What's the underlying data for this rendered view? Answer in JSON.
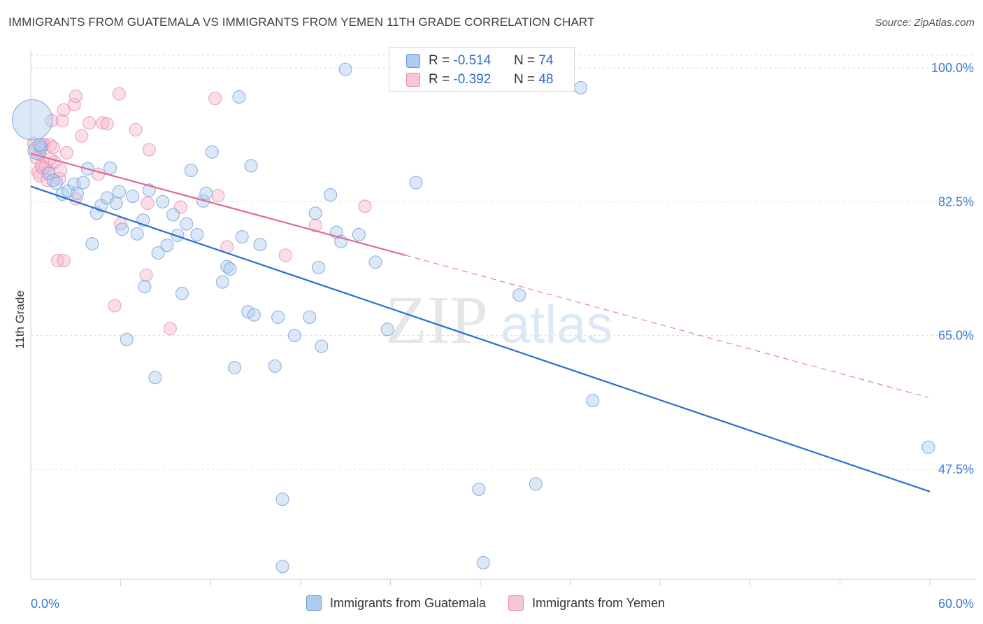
{
  "title": "IMMIGRANTS FROM GUATEMALA VS IMMIGRANTS FROM YEMEN 11TH GRADE CORRELATION CHART",
  "source": "Source: ZipAtlas.com",
  "watermark": {
    "zip": "ZIP",
    "atlas": "atlas"
  },
  "legend": {
    "rows": [
      {
        "r_label": "R =",
        "r_value": "-0.514",
        "n_label": "N =",
        "n_value": "74"
      },
      {
        "r_label": "R =",
        "r_value": "-0.392",
        "n_label": "N =",
        "n_value": "48"
      }
    ]
  },
  "colors": {
    "guatemala_fill": "#aecbf0",
    "guatemala_stroke": "#6d9ad6",
    "guatemala_line": "#2d6fd0",
    "yemen_fill": "#f6b8cc",
    "yemen_stroke": "#e58aa8",
    "yemen_line": "#e06b93",
    "tick_label": "#3b7ad0",
    "grid": "#d9d9d9"
  },
  "chart_data": {
    "type": "scatter",
    "title": "IMMIGRANTS FROM GUATEMALA VS IMMIGRANTS FROM YEMEN 11TH GRADE CORRELATION CHART",
    "xlabel": "",
    "ylabel": "11th Grade",
    "xlim": [
      0,
      60
    ],
    "ylim": [
      30,
      101.5
    ],
    "x_tick_labels": [
      "0.0%",
      "60.0%"
    ],
    "y_ticks": [
      47.5,
      65.0,
      82.5,
      100.0
    ],
    "y_tick_labels": [
      "47.5%",
      "65.0%",
      "82.5%",
      "100.0%"
    ],
    "grid": true,
    "legend_position": "top-center",
    "series": [
      {
        "name": "Immigrants from Guatemala",
        "R": -0.514,
        "N": 74,
        "trend": {
          "x": [
            0,
            60
          ],
          "y": [
            84.5,
            44.6
          ],
          "style": "solid"
        },
        "points": [
          {
            "x": 0.1,
            "y": 93.2,
            "size": 3.2
          },
          {
            "x": 0.4,
            "y": 89.2,
            "size": 1.4
          },
          {
            "x": 0.7,
            "y": 89.6,
            "size": 1
          },
          {
            "x": 1.2,
            "y": 86.2,
            "size": 1
          },
          {
            "x": 1.5,
            "y": 85.3,
            "size": 1
          },
          {
            "x": 1.7,
            "y": 84.9,
            "size": 1
          },
          {
            "x": 2.1,
            "y": 83.5,
            "size": 1
          },
          {
            "x": 2.5,
            "y": 83.9,
            "size": 1
          },
          {
            "x": 2.9,
            "y": 84.8,
            "size": 1
          },
          {
            "x": 3.1,
            "y": 83.6,
            "size": 1
          },
          {
            "x": 3.5,
            "y": 85.0,
            "size": 1
          },
          {
            "x": 3.8,
            "y": 86.8,
            "size": 1
          },
          {
            "x": 4.1,
            "y": 77.0,
            "size": 1
          },
          {
            "x": 4.4,
            "y": 81.0,
            "size": 1
          },
          {
            "x": 4.7,
            "y": 82.0,
            "size": 1
          },
          {
            "x": 5.1,
            "y": 83.0,
            "size": 1
          },
          {
            "x": 5.3,
            "y": 86.9,
            "size": 1
          },
          {
            "x": 5.7,
            "y": 82.3,
            "size": 1
          },
          {
            "x": 5.9,
            "y": 83.8,
            "size": 1
          },
          {
            "x": 6.1,
            "y": 78.9,
            "size": 1
          },
          {
            "x": 6.4,
            "y": 64.5,
            "size": 1
          },
          {
            "x": 6.8,
            "y": 83.2,
            "size": 1
          },
          {
            "x": 7.1,
            "y": 78.3,
            "size": 1
          },
          {
            "x": 7.5,
            "y": 80.1,
            "size": 1
          },
          {
            "x": 7.6,
            "y": 71.4,
            "size": 1
          },
          {
            "x": 7.9,
            "y": 84.0,
            "size": 1
          },
          {
            "x": 8.3,
            "y": 59.5,
            "size": 1
          },
          {
            "x": 8.5,
            "y": 75.8,
            "size": 1
          },
          {
            "x": 8.8,
            "y": 82.5,
            "size": 1
          },
          {
            "x": 9.1,
            "y": 76.8,
            "size": 1
          },
          {
            "x": 9.5,
            "y": 80.8,
            "size": 1
          },
          {
            "x": 9.8,
            "y": 78.1,
            "size": 1
          },
          {
            "x": 10.1,
            "y": 70.5,
            "size": 1
          },
          {
            "x": 10.4,
            "y": 79.6,
            "size": 1
          },
          {
            "x": 10.7,
            "y": 86.6,
            "size": 1
          },
          {
            "x": 11.1,
            "y": 78.2,
            "size": 1
          },
          {
            "x": 11.5,
            "y": 82.6,
            "size": 1
          },
          {
            "x": 11.7,
            "y": 83.6,
            "size": 1
          },
          {
            "x": 12.1,
            "y": 89.0,
            "size": 1
          },
          {
            "x": 12.8,
            "y": 72.0,
            "size": 1
          },
          {
            "x": 13.1,
            "y": 74.0,
            "size": 1
          },
          {
            "x": 13.3,
            "y": 73.7,
            "size": 1
          },
          {
            "x": 13.6,
            "y": 60.8,
            "size": 1
          },
          {
            "x": 13.9,
            "y": 96.2,
            "size": 1
          },
          {
            "x": 14.1,
            "y": 77.9,
            "size": 1
          },
          {
            "x": 14.5,
            "y": 68.1,
            "size": 1
          },
          {
            "x": 14.7,
            "y": 87.2,
            "size": 1
          },
          {
            "x": 14.9,
            "y": 67.7,
            "size": 1
          },
          {
            "x": 15.3,
            "y": 76.9,
            "size": 1
          },
          {
            "x": 16.3,
            "y": 61.0,
            "size": 1
          },
          {
            "x": 16.5,
            "y": 67.4,
            "size": 1
          },
          {
            "x": 16.8,
            "y": 43.6,
            "size": 1
          },
          {
            "x": 16.8,
            "y": 34.8,
            "size": 1
          },
          {
            "x": 17.6,
            "y": 65.0,
            "size": 1
          },
          {
            "x": 18.6,
            "y": 67.4,
            "size": 1
          },
          {
            "x": 19.0,
            "y": 81.0,
            "size": 1
          },
          {
            "x": 19.2,
            "y": 73.9,
            "size": 1
          },
          {
            "x": 19.4,
            "y": 63.6,
            "size": 1
          },
          {
            "x": 20.0,
            "y": 83.4,
            "size": 1
          },
          {
            "x": 20.4,
            "y": 78.5,
            "size": 1
          },
          {
            "x": 20.7,
            "y": 77.3,
            "size": 1
          },
          {
            "x": 21.0,
            "y": 99.8,
            "size": 1
          },
          {
            "x": 21.9,
            "y": 78.2,
            "size": 1
          },
          {
            "x": 23.0,
            "y": 74.6,
            "size": 1
          },
          {
            "x": 23.8,
            "y": 65.8,
            "size": 1
          },
          {
            "x": 25.7,
            "y": 85.0,
            "size": 1
          },
          {
            "x": 29.9,
            "y": 44.9,
            "size": 1
          },
          {
            "x": 30.2,
            "y": 35.3,
            "size": 1
          },
          {
            "x": 32.6,
            "y": 70.3,
            "size": 1
          },
          {
            "x": 33.7,
            "y": 45.6,
            "size": 1
          },
          {
            "x": 36.7,
            "y": 97.4,
            "size": 1
          },
          {
            "x": 37.5,
            "y": 56.5,
            "size": 1
          },
          {
            "x": 59.9,
            "y": 50.4,
            "size": 1
          },
          {
            "x": 0.6,
            "y": 89.9,
            "size": 1
          }
        ]
      },
      {
        "name": "Immigrants from Yemen",
        "R": -0.392,
        "N": 48,
        "trend": {
          "x": [
            0,
            25
          ],
          "y": [
            88.8,
            75.5
          ],
          "style": "solid",
          "extension": {
            "x": [
              25,
              59.9
            ],
            "y": [
              75.5,
              56.9
            ],
            "style": "dashed"
          }
        },
        "points": [
          {
            "x": 0.2,
            "y": 90.1,
            "size": 1
          },
          {
            "x": 0.3,
            "y": 89.2,
            "size": 1
          },
          {
            "x": 0.4,
            "y": 88.2,
            "size": 1
          },
          {
            "x": 0.5,
            "y": 86.4,
            "size": 1
          },
          {
            "x": 0.6,
            "y": 85.9,
            "size": 1
          },
          {
            "x": 0.7,
            "y": 87.2,
            "size": 1
          },
          {
            "x": 0.8,
            "y": 89.9,
            "size": 1
          },
          {
            "x": 0.9,
            "y": 90.0,
            "size": 1
          },
          {
            "x": 1.0,
            "y": 87.0,
            "size": 1
          },
          {
            "x": 1.1,
            "y": 85.3,
            "size": 1
          },
          {
            "x": 1.2,
            "y": 86.5,
            "size": 1
          },
          {
            "x": 1.3,
            "y": 89.9,
            "size": 1
          },
          {
            "x": 1.4,
            "y": 93.1,
            "size": 1
          },
          {
            "x": 1.5,
            "y": 89.6,
            "size": 1
          },
          {
            "x": 1.6,
            "y": 87.7,
            "size": 1
          },
          {
            "x": 1.8,
            "y": 74.8,
            "size": 1
          },
          {
            "x": 1.9,
            "y": 85.5,
            "size": 1
          },
          {
            "x": 2.0,
            "y": 86.6,
            "size": 1
          },
          {
            "x": 2.1,
            "y": 93.1,
            "size": 1
          },
          {
            "x": 2.2,
            "y": 94.5,
            "size": 1
          },
          {
            "x": 2.2,
            "y": 74.8,
            "size": 1
          },
          {
            "x": 2.4,
            "y": 88.9,
            "size": 1
          },
          {
            "x": 2.9,
            "y": 95.2,
            "size": 1
          },
          {
            "x": 3.0,
            "y": 96.3,
            "size": 1
          },
          {
            "x": 3.0,
            "y": 82.9,
            "size": 1
          },
          {
            "x": 3.4,
            "y": 91.1,
            "size": 1
          },
          {
            "x": 3.9,
            "y": 92.8,
            "size": 1
          },
          {
            "x": 4.5,
            "y": 86.1,
            "size": 1
          },
          {
            "x": 4.8,
            "y": 92.8,
            "size": 1
          },
          {
            "x": 5.1,
            "y": 92.7,
            "size": 1
          },
          {
            "x": 5.6,
            "y": 68.9,
            "size": 1
          },
          {
            "x": 5.9,
            "y": 96.6,
            "size": 1
          },
          {
            "x": 6.0,
            "y": 79.6,
            "size": 1
          },
          {
            "x": 7.0,
            "y": 91.9,
            "size": 1
          },
          {
            "x": 7.7,
            "y": 72.9,
            "size": 1
          },
          {
            "x": 7.8,
            "y": 82.3,
            "size": 1
          },
          {
            "x": 7.9,
            "y": 89.3,
            "size": 1
          },
          {
            "x": 9.3,
            "y": 65.9,
            "size": 1
          },
          {
            "x": 10.0,
            "y": 81.8,
            "size": 1
          },
          {
            "x": 12.3,
            "y": 96.0,
            "size": 1
          },
          {
            "x": 12.5,
            "y": 83.3,
            "size": 1
          },
          {
            "x": 13.1,
            "y": 76.6,
            "size": 1
          },
          {
            "x": 17.0,
            "y": 75.5,
            "size": 1
          },
          {
            "x": 19.0,
            "y": 79.4,
            "size": 1
          },
          {
            "x": 22.3,
            "y": 81.9,
            "size": 1
          },
          {
            "x": 0.6,
            "y": 88.7,
            "size": 1
          },
          {
            "x": 1.3,
            "y": 88.1,
            "size": 1
          },
          {
            "x": 0.8,
            "y": 86.9,
            "size": 1
          }
        ]
      }
    ]
  }
}
